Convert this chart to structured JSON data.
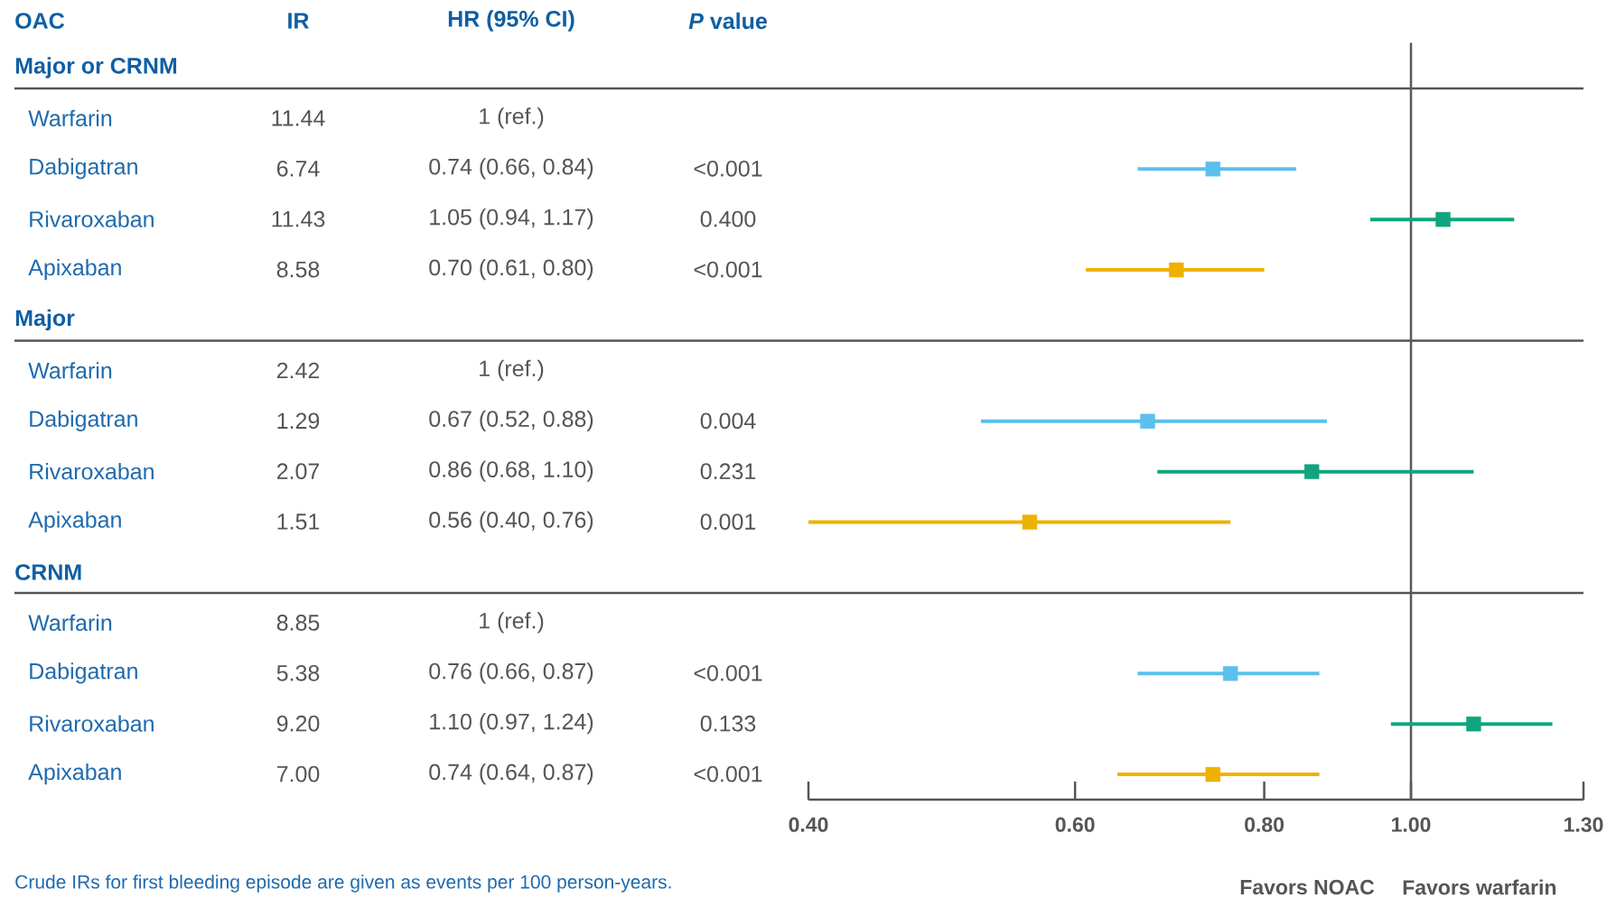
{
  "chart_data": [
    {
      "type": "other",
      "categories": [
        "OAC",
        "IR",
        "HR (95% CI)",
        "*P* value"
      ],
      "y_categories": [
        "Major or CRNM",
        "Warfarin",
        "Dabigatran",
        "Rivaroxaban",
        "Apixaban",
        "Major",
        "Warfarin",
        "Dabigatran",
        "Rivaroxaban",
        "Apixaban",
        "CRNM",
        "Warfarin",
        "Dabigatran",
        "Rivaroxaban",
        "Apixaban"
      ],
      "cell_labels": [
        [
          null,
          null,
          null
        ],
        [
          "11.44",
          "1 (ref.)",
          null
        ],
        [
          "6.74",
          "0.74 (0.66, 0.84)",
          "<0.001"
        ],
        [
          "11.43",
          "1.05 (0.94, 1.17)",
          "0.400"
        ],
        [
          "8.58",
          "0.70 (0.61, 0.80)",
          "<0.001"
        ],
        [
          null,
          null,
          null
        ],
        [
          "2.42",
          "1 (ref.)",
          null
        ],
        [
          "1.29",
          "0.67 (0.52, 0.88)",
          "0.004"
        ],
        [
          "2.07",
          "0.86 (0.68, 1.10)",
          "0.231"
        ],
        [
          "1.51",
          "0.56 (0.40, 0.76)",
          "0.001"
        ],
        [
          null,
          null,
          null
        ],
        [
          "8.85",
          "1 (ref.)",
          null
        ],
        [
          "5.38",
          "0.76 (0.66, 0.87)",
          "<0.001"
        ],
        [
          "9.20",
          "1.10 (0.97, 1.24)",
          "0.133"
        ],
        [
          "7.00",
          "0.74 (0.64, 0.87)",
          "<0.001"
        ]
      ],
      "annotations": [
        "Crude IRs for first bleeding episode are given as events per 100 person-years."
      ]
    },
    {
      "type": "scatter",
      "orientation": "horizontal",
      "categories": [
        null,
        null,
        null,
        null,
        null,
        null,
        null,
        null,
        null,
        null,
        null,
        null,
        null,
        null,
        null
      ],
      "tick_labels": "x",
      "log": "x",
      "xlim": [
        0.4,
        1.3
      ],
      "xticks": [
        {
          "value": 0.4,
          "label": "0.40"
        },
        {
          "value": 0.6,
          "label": "0.60"
        },
        {
          "value": 0.8,
          "label": "0.80"
        },
        {
          "value": 1.0,
          "label": "1.00"
        },
        {
          "value": 1.3,
          "label": "1.30"
        }
      ],
      "marker": "square",
      "ref_lines": [
        {
          "axis": "x",
          "value": 1.0,
          "color": "#595959"
        }
      ],
      "annotations": [
        "Favors NOAC",
        "Favors warfarin"
      ],
      "series": [
        {
          "color": "#5bc0eb",
          "values": [
            null,
            null,
            0.74,
            null,
            null,
            null,
            null,
            0.67,
            null,
            null,
            null,
            null,
            0.76,
            null,
            null
          ],
          "errors": [
            null,
            null,
            [
              0.66,
              0.84
            ],
            null,
            null,
            null,
            null,
            [
              0.52,
              0.88
            ],
            null,
            null,
            null,
            null,
            [
              0.66,
              0.87
            ],
            null,
            null
          ]
        },
        {
          "color": "#10a57e",
          "values": [
            null,
            null,
            null,
            1.05,
            null,
            null,
            null,
            null,
            0.86,
            null,
            null,
            null,
            null,
            1.1,
            null
          ],
          "errors": [
            null,
            null,
            null,
            [
              0.94,
              1.17
            ],
            null,
            null,
            null,
            null,
            [
              0.68,
              1.1
            ],
            null,
            null,
            null,
            null,
            [
              0.97,
              1.24
            ],
            null
          ]
        },
        {
          "color": "#efb100",
          "values": [
            null,
            null,
            null,
            null,
            0.7,
            null,
            null,
            null,
            null,
            0.56,
            null,
            null,
            null,
            null,
            0.74
          ],
          "errors": [
            null,
            null,
            null,
            null,
            [
              0.61,
              0.8
            ],
            null,
            null,
            null,
            null,
            [
              0.4,
              0.76
            ],
            null,
            null,
            null,
            null,
            [
              0.64,
              0.87
            ]
          ]
        }
      ]
    }
  ]
}
